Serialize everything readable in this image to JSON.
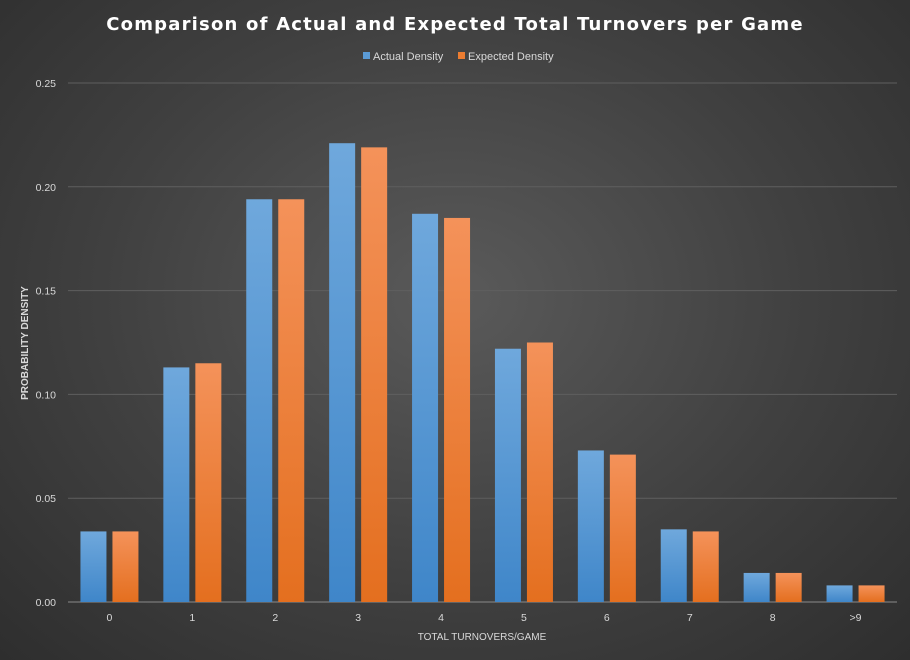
{
  "chart_data": {
    "type": "bar",
    "title": "Comparison of Actual and Expected Total Turnovers per Game",
    "xlabel": "TOTAL TURNOVERS/GAME",
    "ylabel": "PROBABILITY DENSITY",
    "categories": [
      "0",
      "1",
      "2",
      "3",
      "4",
      "5",
      "6",
      "7",
      "8",
      ">9"
    ],
    "series": [
      {
        "name": "Actual Density",
        "color": "#5b9bd5",
        "values": [
          0.034,
          0.113,
          0.194,
          0.221,
          0.187,
          0.122,
          0.073,
          0.035,
          0.014,
          0.008
        ]
      },
      {
        "name": "Expected Density",
        "color": "#ed7d31",
        "values": [
          0.034,
          0.115,
          0.194,
          0.219,
          0.185,
          0.125,
          0.071,
          0.034,
          0.014,
          0.008
        ]
      }
    ],
    "ylim": [
      0,
      0.25
    ],
    "yticks": [
      "0.00",
      "0.05",
      "0.10",
      "0.15",
      "0.20",
      "0.25"
    ],
    "grid": true,
    "legend_position": "top"
  }
}
